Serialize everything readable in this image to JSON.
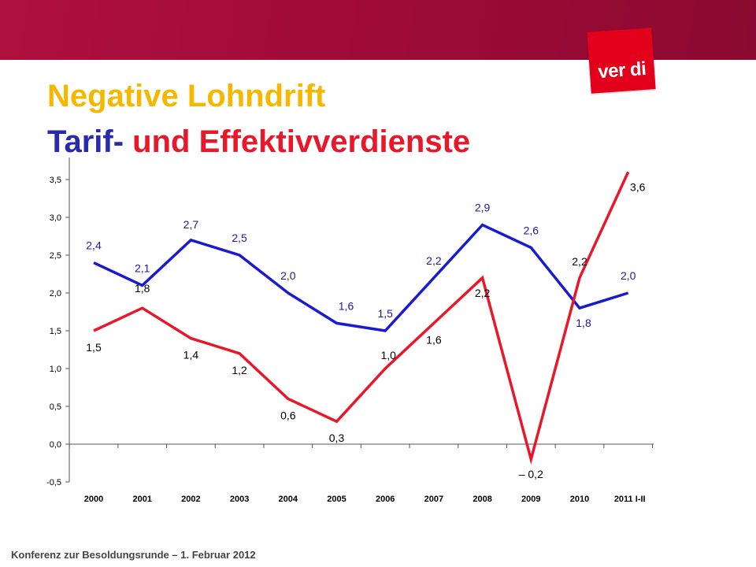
{
  "header": {
    "logo_text": "ver di",
    "title_line1": "Negative Lohndrift",
    "title_part_tarif": "Tarif-",
    "title_part_rest": "und Effektivverdienste"
  },
  "footer": {
    "text": "Konferenz zur Besoldungsrunde – 1. Februar 2012"
  },
  "colors": {
    "banner": "#a00b37",
    "title_yellow": "#f5b800",
    "blue_series": "#1a1ad0",
    "red_series": "#e8182a"
  },
  "chart_data": {
    "type": "line",
    "categories": [
      "2000",
      "2001",
      "2002",
      "2003",
      "2004",
      "2005",
      "2006",
      "2007",
      "2008",
      "2009",
      "2010",
      "2011 I-II"
    ],
    "ylim": [
      -0.5,
      3.5
    ],
    "yticks": [
      "-0,5",
      "0,0",
      "0,5",
      "1,0",
      "1,5",
      "2,0",
      "2,5",
      "3,0",
      "3,5"
    ],
    "ytick_values": [
      -0.5,
      0,
      0.5,
      1.0,
      1.5,
      2.0,
      2.5,
      3.0,
      3.5
    ],
    "grid": false,
    "series": [
      {
        "color": "#1a1ad0",
        "values": [
          2.4,
          2.1,
          2.7,
          2.5,
          2.0,
          1.6,
          1.5,
          2.2,
          2.9,
          2.6,
          1.8,
          2.0
        ],
        "labels": [
          "2,4",
          "2,1",
          "2,7",
          "2,5",
          "2,0",
          "1,6",
          "1,5",
          "2,2",
          "2,9",
          "2,6",
          "1,8",
          "2,0"
        ]
      },
      {
        "color": "#e8182a",
        "values": [
          1.5,
          1.8,
          1.4,
          1.2,
          0.6,
          0.3,
          1.0,
          1.6,
          2.2,
          -0.2,
          2.2,
          3.6
        ],
        "labels": [
          "1,5",
          "1,8",
          "1,4",
          "1,2",
          "0,6",
          "0,3",
          "1,0",
          "1,6",
          "2,2",
          "– 0,2",
          "2,2",
          "3,6"
        ]
      }
    ]
  }
}
